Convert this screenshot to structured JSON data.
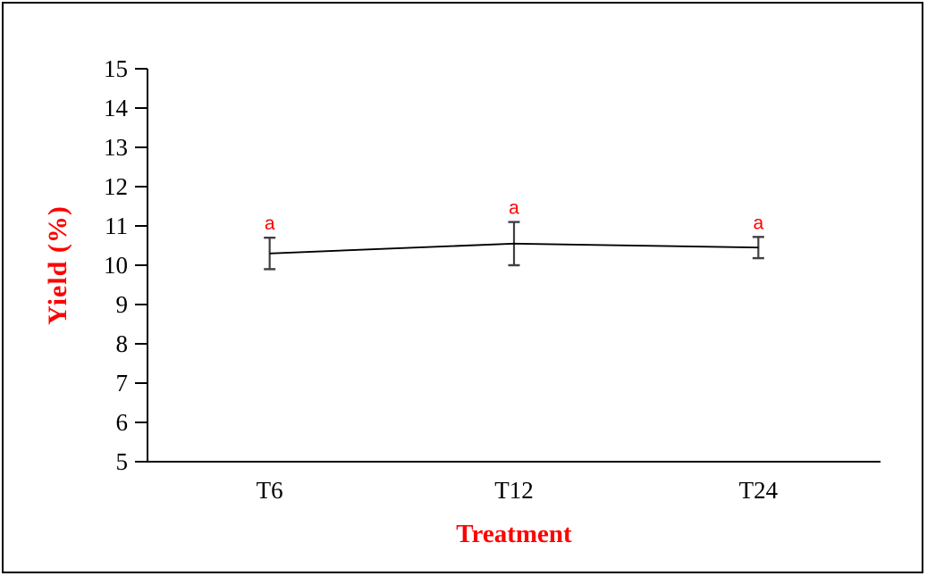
{
  "figure": {
    "background": "#ffffff",
    "border_color": "#000000"
  },
  "chart_data": {
    "type": "line",
    "title": "",
    "xlabel": "Treatment",
    "ylabel": "Yield (%)",
    "categories": [
      "T6",
      "T12",
      "T24"
    ],
    "series": [
      {
        "name": "Yield",
        "values": [
          10.3,
          10.55,
          10.45
        ],
        "errors": [
          0.4,
          0.55,
          0.27
        ]
      }
    ],
    "point_labels": [
      "a",
      "a",
      "a"
    ],
    "ylim": [
      5,
      15
    ],
    "yticks": [
      5,
      6,
      7,
      8,
      9,
      10,
      11,
      12,
      13,
      14,
      15
    ],
    "grid": false,
    "legend": "none",
    "colors": {
      "axis": "#000000",
      "tick_label": "#000000",
      "series_line": "#000000",
      "error_bar": "#404040",
      "axis_label": "#ff0000",
      "point_label": "#ff0000"
    }
  }
}
